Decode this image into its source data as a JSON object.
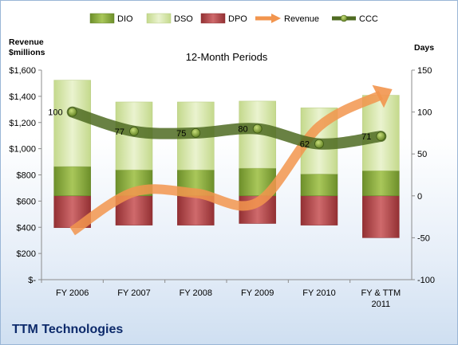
{
  "chart_data": {
    "type": "bar",
    "title": "12-Month Periods",
    "company": "TTM Technologies",
    "left_axis_label_line1": "Revenue",
    "left_axis_label_line2": "$millions",
    "right_axis_label": "Days",
    "categories": [
      "FY 2006",
      "FY 2007",
      "FY 2008",
      "FY 2009",
      "FY 2010",
      "FY & TTM 2011"
    ],
    "left_ylim": [
      0,
      1600
    ],
    "left_ticks": [
      "$-",
      "$200",
      "$400",
      "$600",
      "$800",
      "$1,000",
      "$1,200",
      "$1,400",
      "$1,600"
    ],
    "right_ylim": [
      -100,
      150
    ],
    "right_ticks": [
      "-100",
      "-50",
      "0",
      "50",
      "100",
      "150"
    ],
    "legend": [
      "DIO",
      "DSO",
      "DPO",
      "Revenue",
      "CCC"
    ],
    "series": [
      {
        "name": "DIO",
        "axis": "right",
        "values": [
          35,
          31,
          31,
          33,
          26,
          30
        ]
      },
      {
        "name": "DSO",
        "axis": "right",
        "values": [
          103,
          81,
          81,
          80,
          79,
          90
        ]
      },
      {
        "name": "DPO",
        "axis": "right",
        "values": [
          -38,
          -35,
          -35,
          -33,
          -35,
          -50
        ]
      },
      {
        "name": "Revenue",
        "axis": "left",
        "values": [
          370,
          670,
          660,
          590,
          1170,
          1410
        ]
      },
      {
        "name": "CCC",
        "axis": "right",
        "values": [
          100,
          77,
          75,
          80,
          62,
          71
        ]
      }
    ],
    "ccc_labels": [
      "100",
      "77",
      "75",
      "80",
      "62",
      "71"
    ],
    "colors": {
      "DIO": "#8fb03e",
      "DSO": "#d5e6a6",
      "DPO": "#b3474a",
      "Revenue": "#f2954e",
      "CCC": "#4f6b22"
    },
    "legend_position": "top",
    "grid": false
  }
}
